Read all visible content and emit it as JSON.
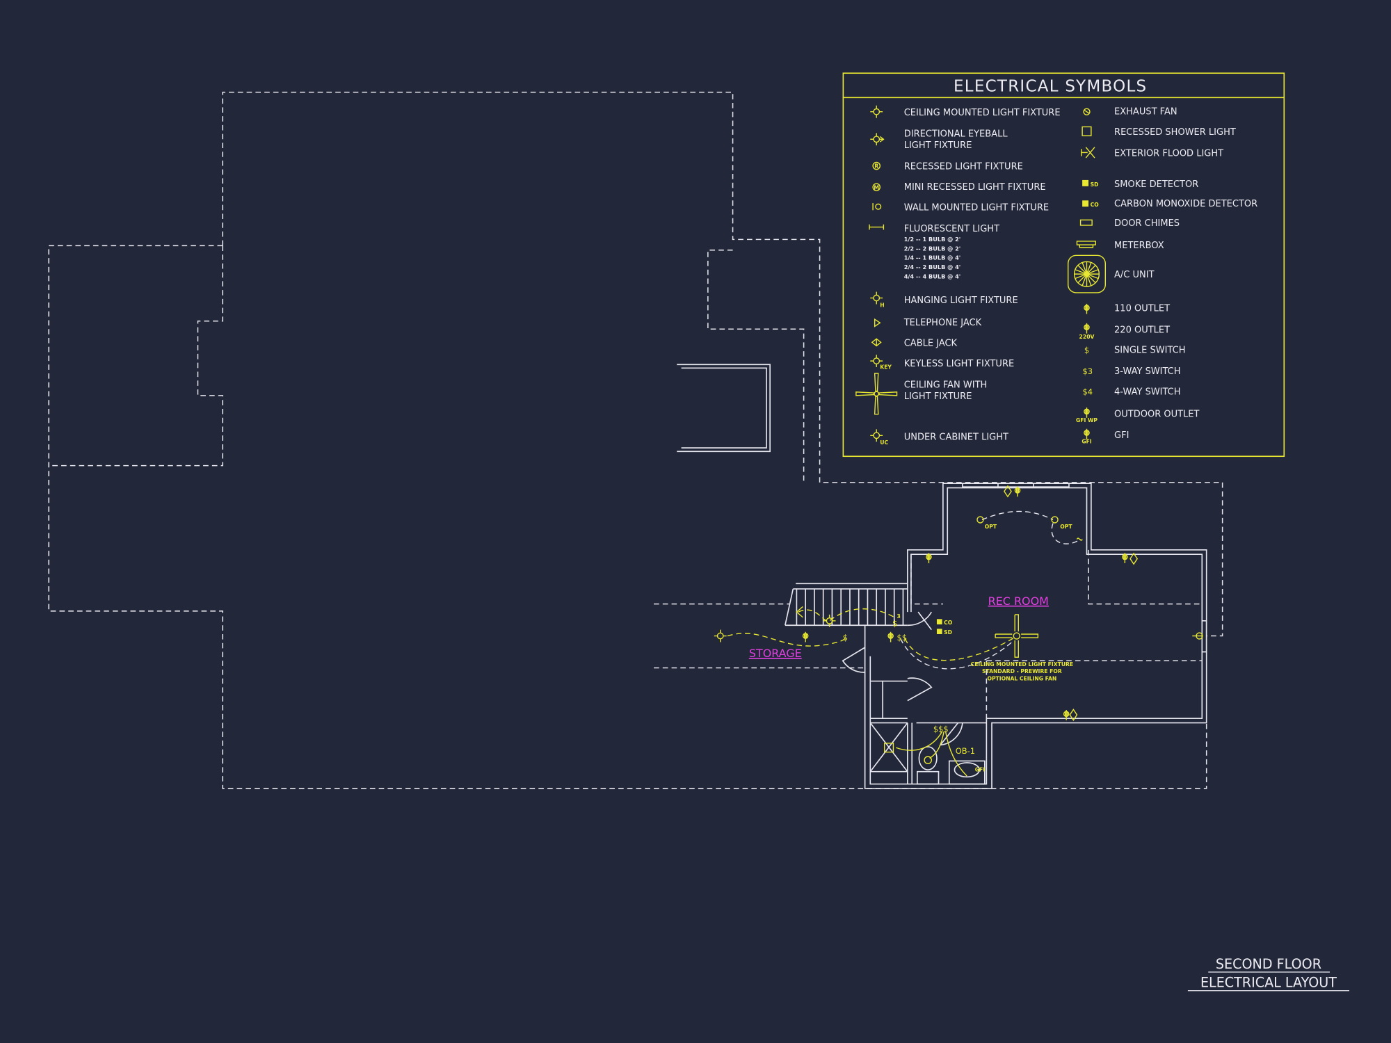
{
  "colors": {
    "background": "#23273a",
    "lines": "#e6e6ee",
    "electrical": "#e8e832",
    "room_label": "#e040e0"
  },
  "legend": {
    "title": "ELECTRICAL SYMBOLS",
    "left": [
      {
        "icon": "ceiling-light-icon",
        "lines": [
          "CEILING MOUNTED LIGHT FIXTURE"
        ]
      },
      {
        "icon": "eyeball-light-icon",
        "lines": [
          "DIRECTIONAL EYEBALL",
          "LIGHT FIXTURE"
        ]
      },
      {
        "icon": "recessed-light-icon",
        "tag": "R",
        "lines": [
          "RECESSED LIGHT FIXTURE"
        ]
      },
      {
        "icon": "mini-recessed-light-icon",
        "tag": "M",
        "lines": [
          "MINI RECESSED LIGHT FIXTURE"
        ]
      },
      {
        "icon": "wall-light-icon",
        "lines": [
          "WALL MOUNTED LIGHT FIXTURE"
        ]
      },
      {
        "icon": "fluorescent-light-icon",
        "lines": [
          "FLUORESCENT LIGHT"
        ],
        "sub": [
          "1/2 -- 1 BULB @ 2'",
          "2/2 -- 2 BULB @ 2'",
          "1/4 -- 1 BULB @ 4'",
          "2/4 -- 2 BULB @ 4'",
          "4/4 -- 4 BULB @ 4'"
        ]
      },
      {
        "icon": "hanging-light-icon",
        "tag": "H",
        "lines": [
          "HANGING LIGHT FIXTURE"
        ]
      },
      {
        "icon": "telephone-jack-icon",
        "lines": [
          "TELEPHONE JACK"
        ]
      },
      {
        "icon": "cable-jack-icon",
        "lines": [
          "CABLE JACK"
        ]
      },
      {
        "icon": "keyless-light-icon",
        "tag": "KEY",
        "lines": [
          "KEYLESS LIGHT FIXTURE"
        ]
      },
      {
        "icon": "ceiling-fan-icon",
        "lines": [
          "CEILING FAN WITH",
          "LIGHT FIXTURE"
        ]
      },
      {
        "icon": "under-cabinet-light-icon",
        "tag": "UC",
        "lines": [
          "UNDER CABINET LIGHT"
        ]
      }
    ],
    "right": [
      {
        "icon": "exhaust-fan-icon",
        "label": "EXHAUST FAN"
      },
      {
        "icon": "recessed-shower-light-icon",
        "label": "RECESSED SHOWER LIGHT"
      },
      {
        "icon": "flood-light-icon",
        "label": "EXTERIOR FLOOD LIGHT"
      },
      {
        "icon": "smoke-detector-icon",
        "tag": "SD",
        "label": "SMOKE DETECTOR"
      },
      {
        "icon": "co-detector-icon",
        "tag": "CO",
        "label": "CARBON MONOXIDE DETECTOR"
      },
      {
        "icon": "door-chimes-icon",
        "label": "DOOR CHIMES"
      },
      {
        "icon": "meterbox-icon",
        "label": "METERBOX"
      },
      {
        "icon": "ac-unit-icon",
        "label": "A/C UNIT"
      },
      {
        "icon": "outlet-110-icon",
        "label": "110 OUTLET"
      },
      {
        "icon": "outlet-220-icon",
        "tag": "220V",
        "label": "220 OUTLET"
      },
      {
        "icon": "single-switch-icon",
        "tag": "$",
        "label": "SINGLE SWITCH"
      },
      {
        "icon": "three-way-switch-icon",
        "tag": "$3",
        "label": "3-WAY SWITCH"
      },
      {
        "icon": "four-way-switch-icon",
        "tag": "$4",
        "label": "4-WAY SWITCH"
      },
      {
        "icon": "outdoor-outlet-icon",
        "tag": "GFI WP",
        "label": "OUTDOOR OUTLET"
      },
      {
        "icon": "gfi-outlet-icon",
        "tag": "GFI",
        "label": "GFI"
      }
    ]
  },
  "plan": {
    "rooms": {
      "rec_room": "REC ROOM",
      "storage": "STORAGE"
    },
    "annotations": {
      "fan_note": [
        "CEILING MOUNTED LIGHT FIXTURE",
        "STANDARD - PREWIRE FOR",
        "OPTIONAL CEILING FAN"
      ],
      "opt": "OPT",
      "ob": "OB-1",
      "co": "CO",
      "sd": "SD",
      "gfi": "GFI",
      "sw3": "3",
      "switch": "$",
      "switch_pair": "$$",
      "switch_triple": "$$$"
    }
  },
  "sheet_title": [
    "SECOND FLOOR",
    "ELECTRICAL LAYOUT"
  ]
}
